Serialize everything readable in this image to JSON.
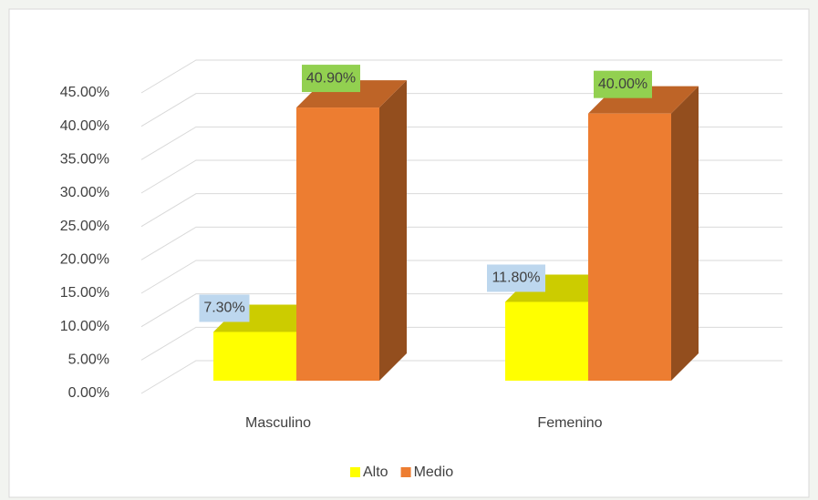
{
  "chart_data": {
    "type": "bar3d",
    "categories": [
      "Masculino",
      "Femenino"
    ],
    "series": [
      {
        "name": "Alto",
        "color": "#ffff00",
        "values": [
          7.3,
          11.8
        ],
        "value_labels": [
          "7.30%",
          "11.80%"
        ]
      },
      {
        "name": "Medio",
        "color": "#ed7d31",
        "values": [
          40.9,
          40.0
        ],
        "value_labels": [
          "40.90%",
          "40.00%"
        ]
      }
    ],
    "ylim": [
      0,
      45
    ],
    "yticks": [
      {
        "value": 0,
        "label": "0.00%"
      },
      {
        "value": 5,
        "label": "5.00%"
      },
      {
        "value": 10,
        "label": "10.00%"
      },
      {
        "value": 15,
        "label": "15.00%"
      },
      {
        "value": 20,
        "label": "20.00%"
      },
      {
        "value": 25,
        "label": "25.00%"
      },
      {
        "value": 30,
        "label": "30.00%"
      },
      {
        "value": 35,
        "label": "35.00%"
      },
      {
        "value": 40,
        "label": "40.00%"
      },
      {
        "value": 45,
        "label": "45.00%"
      }
    ],
    "grid": true,
    "legend": "bottom"
  }
}
